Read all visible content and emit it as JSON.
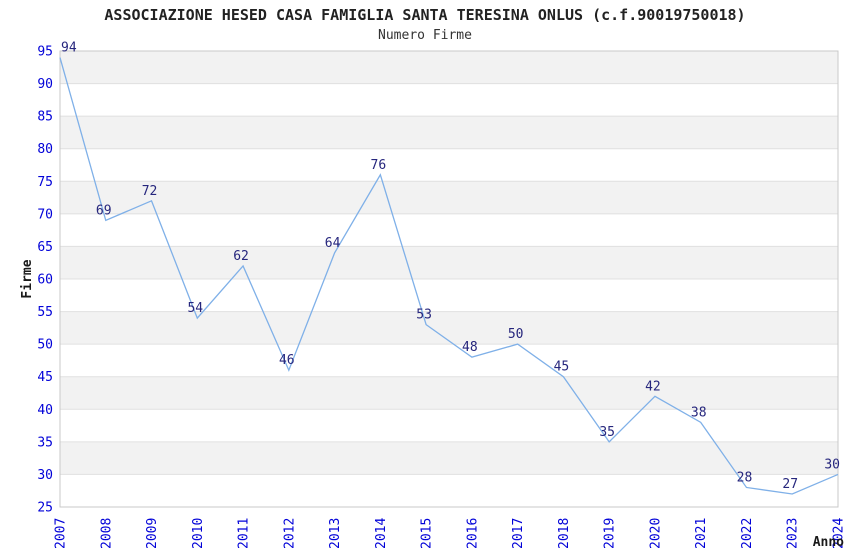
{
  "chart_data": {
    "type": "line",
    "title": "ASSOCIAZIONE HESED CASA FAMIGLIA SANTA TERESINA ONLUS (c.f.90019750018)",
    "subtitle": "Numero Firme",
    "xlabel": "Anno",
    "ylabel": "Firme",
    "x": [
      2007,
      2008,
      2009,
      2010,
      2011,
      2012,
      2013,
      2014,
      2015,
      2016,
      2017,
      2018,
      2019,
      2020,
      2021,
      2022,
      2023,
      2024
    ],
    "values": [
      94,
      69,
      72,
      54,
      62,
      46,
      64,
      76,
      53,
      48,
      50,
      45,
      35,
      42,
      38,
      28,
      27,
      30
    ],
    "ylim": [
      25,
      95
    ],
    "ytick_step": 5,
    "grid": "horizontal-bands-alternating",
    "legend": "none",
    "point_labels_shown": true,
    "colors": {
      "line": "#7fb0e8",
      "tick_label": "#0202d8",
      "data_label": "#26267d",
      "band": "#f2f2f2",
      "grid": "#e0e0e0",
      "border": "#c9c9c9",
      "title": "#222222",
      "background": "#ffffff"
    }
  }
}
